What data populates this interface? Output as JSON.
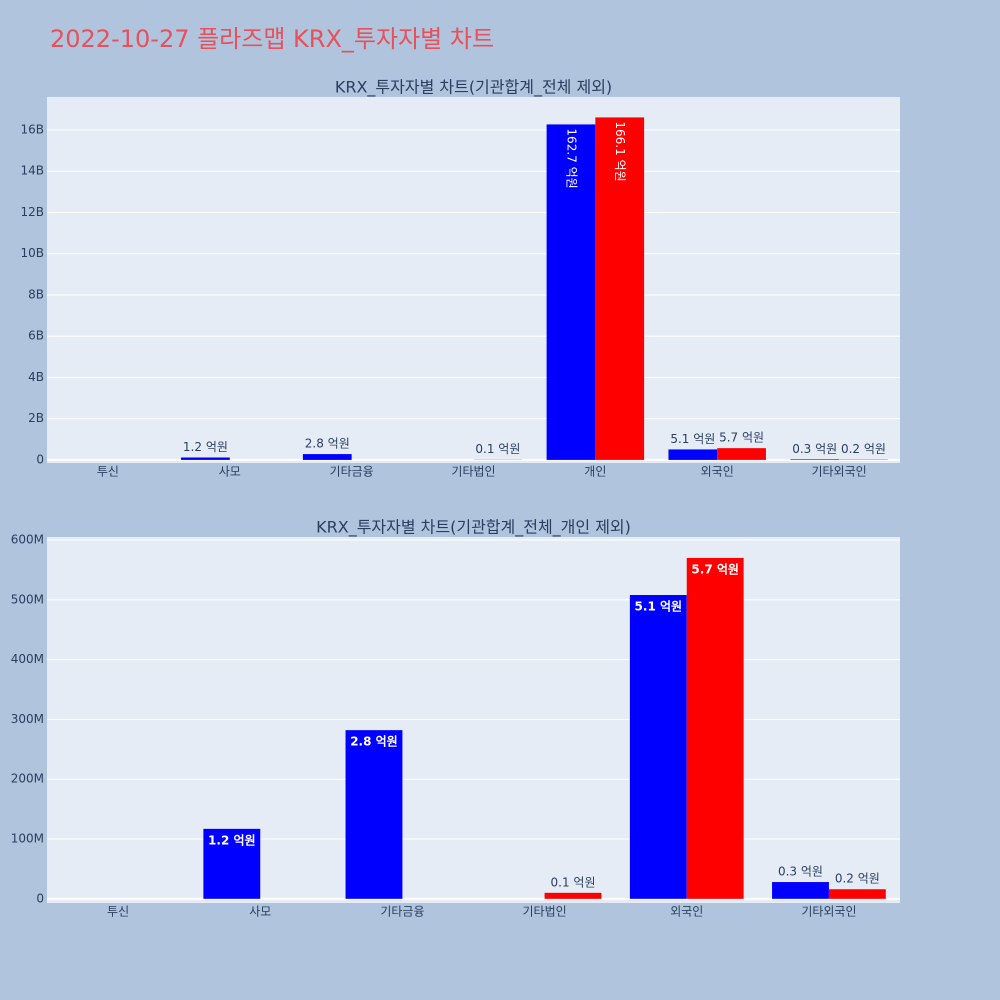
{
  "title": "2022-10-27 플라즈맵 KRX_투자자별 차트",
  "chart_data": [
    {
      "type": "bar",
      "title": "KRX_투자자별 차트(기관합계_전체 제외)",
      "categories": [
        "투신",
        "사모",
        "기타금융",
        "기타법인",
        "개인",
        "외국인",
        "기타외국인"
      ],
      "series": [
        {
          "color": "#0000ff",
          "values": [
            null,
            117000000,
            282000000,
            null,
            16270000000,
            508000000,
            28000000
          ],
          "value_labels": [
            null,
            "1.2 억원",
            "2.8 억원",
            null,
            "162.7 억원",
            "5.1 억원",
            "0.3 억원"
          ]
        },
        {
          "color": "#ff0000",
          "values": [
            null,
            null,
            null,
            10000000,
            16610000000,
            570000000,
            16000000
          ],
          "value_labels": [
            null,
            null,
            null,
            "0.1 억원",
            "166.1 억원",
            "5.7 억원",
            "0.2 억원"
          ]
        }
      ],
      "ylim": [
        -150000000,
        17600000000
      ],
      "yticks": [
        0,
        {
          "value": 2000000000,
          "label": "2B"
        },
        {
          "value": 4000000000,
          "label": "4B"
        },
        {
          "value": 6000000000,
          "label": "6B"
        },
        {
          "value": 8000000000,
          "label": "8B"
        },
        {
          "value": 10000000000,
          "label": "10B"
        },
        {
          "value": 12000000000,
          "label": "12B"
        },
        {
          "value": 14000000000,
          "label": "14B"
        },
        {
          "value": 16000000000,
          "label": "16B"
        }
      ],
      "grid": true
    },
    {
      "type": "bar",
      "title": "KRX_투자자별 차트(기관합계_전체_개인 제외)",
      "categories": [
        "투신",
        "사모",
        "기타금융",
        "기타법인",
        "외국인",
        "기타외국인"
      ],
      "series": [
        {
          "color": "#0000ff",
          "values": [
            null,
            117000000,
            282000000,
            null,
            508000000,
            28000000
          ],
          "value_labels": [
            null,
            "1.2 억원",
            "2.8 억원",
            null,
            "5.1 억원",
            "0.3 억원"
          ]
        },
        {
          "color": "#ff0000",
          "values": [
            null,
            null,
            null,
            10000000,
            570000000,
            16000000
          ],
          "value_labels": [
            null,
            null,
            null,
            "0.1 억원",
            "5.7 억원",
            "0.2 억원"
          ]
        }
      ],
      "ylim": [
        -7000000,
        605000000
      ],
      "yticks": [
        0,
        {
          "value": 100000000,
          "label": "100M"
        },
        {
          "value": 200000000,
          "label": "200M"
        },
        {
          "value": 300000000,
          "label": "300M"
        },
        {
          "value": 400000000,
          "label": "400M"
        },
        {
          "value": 500000000,
          "label": "500M"
        },
        {
          "value": 600000000,
          "label": "600M"
        }
      ],
      "grid": true
    }
  ]
}
